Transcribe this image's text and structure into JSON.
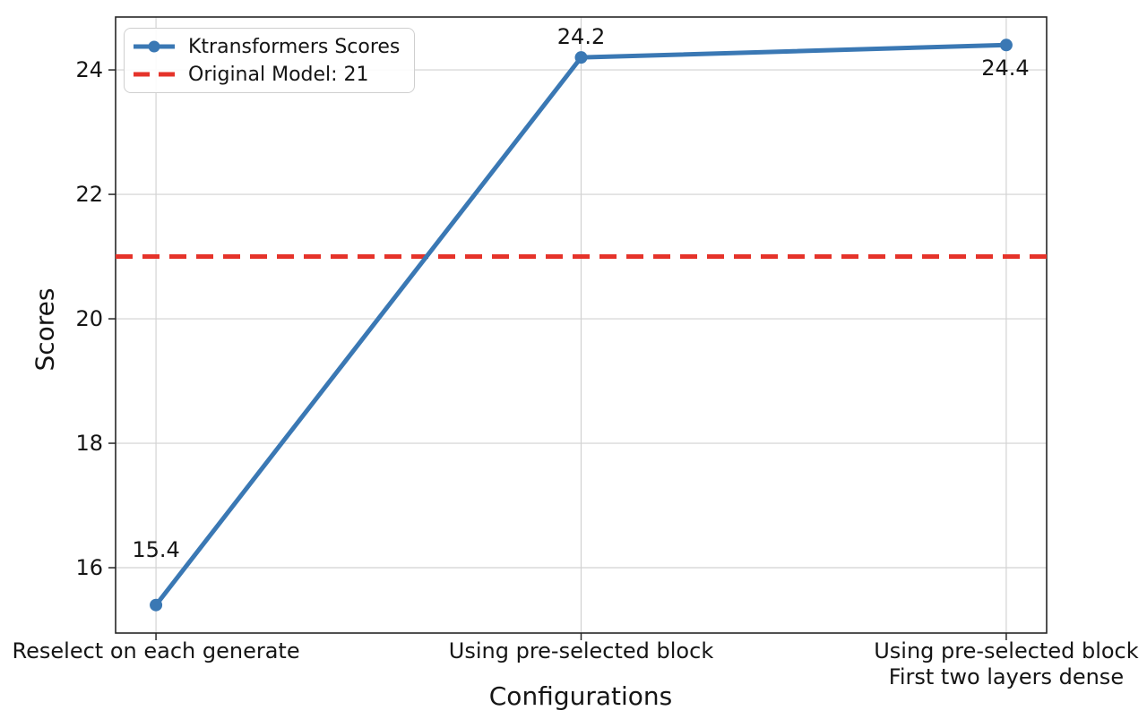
{
  "chart_data": {
    "type": "line",
    "title": "",
    "xlabel": "Configurations",
    "ylabel": "Scores",
    "categories": [
      "Reselect on each generate",
      "Using pre-selected block",
      "Using pre-selected block\nFirst two layers dense"
    ],
    "series": [
      {
        "name": "Ktransformers Scores",
        "values": [
          15.4,
          24.2,
          24.4
        ],
        "point_labels": [
          "15.4",
          "24.2",
          "24.4"
        ],
        "color": "#3a78b4",
        "marker": "circle"
      }
    ],
    "reference_line": {
      "name": "Original Model: 21",
      "value": 21,
      "color": "#e5332a",
      "style": "dashed"
    },
    "yticks": [
      16,
      18,
      20,
      22,
      24
    ],
    "ylim": [
      14.95,
      24.85
    ],
    "xlim": [
      -0.095,
      2.095
    ],
    "grid": true,
    "grid_color": "#d2d2d2",
    "axis_color": "#262626",
    "text_color": "#151515",
    "legend": {
      "position": "upper-left",
      "entries": [
        {
          "label": "Ktransformers Scores"
        },
        {
          "label": "Original Model: 21"
        }
      ]
    }
  }
}
